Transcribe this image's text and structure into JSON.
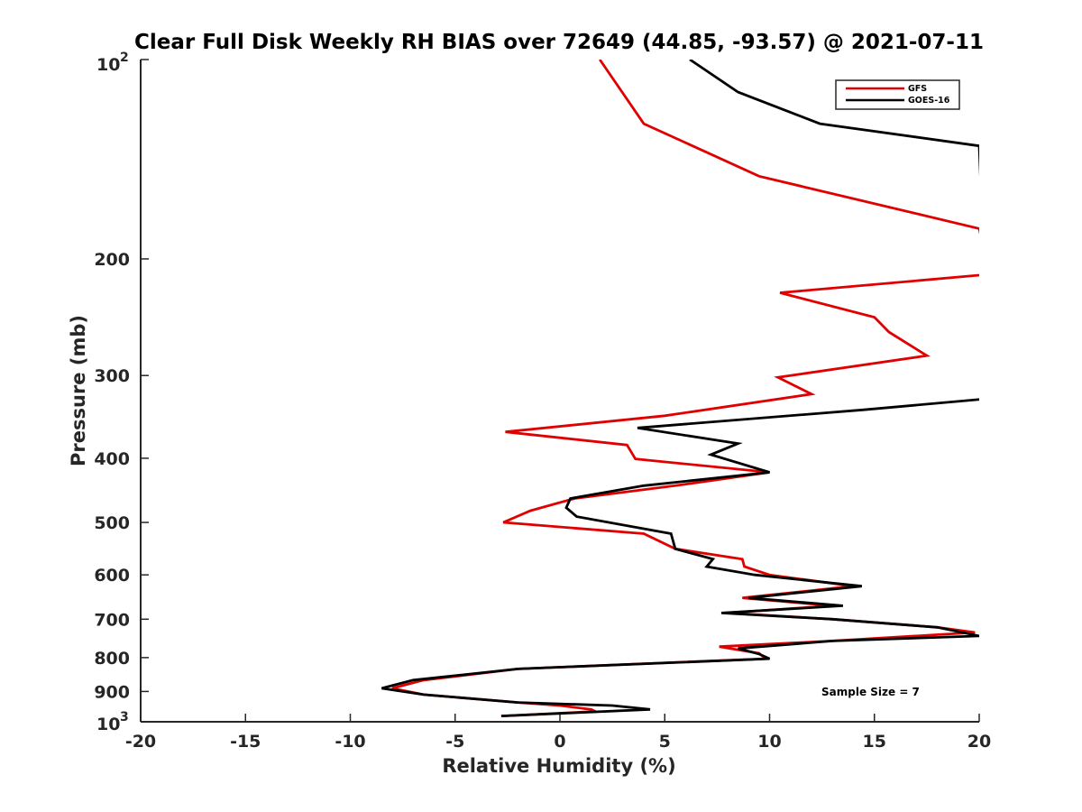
{
  "chart_data": {
    "type": "line",
    "title": "Clear Full Disk Weekly RH BIAS over 72649 (44.85, -93.57) @ 2021-07-11",
    "xlabel": "Relative Humidity (%)",
    "ylabel": "Pressure (mb)",
    "xlim": [
      -20,
      20
    ],
    "ylim": [
      100,
      1000
    ],
    "y_scale": "log",
    "y_reversed": true,
    "grid": false,
    "legend_position": "top-right",
    "x_ticks": [
      -20,
      -15,
      -10,
      -5,
      0,
      5,
      10,
      15,
      20
    ],
    "x_tick_labels": [
      "-20",
      "-15",
      "-10",
      "-5",
      "0",
      "5",
      "10",
      "15",
      "20"
    ],
    "y_ticks": [
      200,
      300,
      400,
      500,
      600,
      700,
      800,
      900
    ],
    "y_tick_labels": [
      "200",
      "300",
      "400",
      "500",
      "600",
      "700",
      "800",
      "900"
    ],
    "y_edge_labels": {
      "top_base": "10",
      "top_exp": "2",
      "bottom_base": "10",
      "bottom_exp": "3"
    },
    "annotation": "Sample Size = 7",
    "series": [
      {
        "name": "GFS",
        "color": "#e00000",
        "points": [
          [
            1.9,
            100
          ],
          [
            4.0,
            125
          ],
          [
            9.5,
            150
          ],
          [
            20.0,
            180
          ],
          [
            20.5,
            211
          ],
          [
            10.5,
            225
          ],
          [
            15.0,
            245
          ],
          [
            15.7,
            258
          ],
          [
            17.5,
            280
          ],
          [
            10.4,
            302
          ],
          [
            12.0,
            320
          ],
          [
            5.0,
            345
          ],
          [
            -2.6,
            365
          ],
          [
            3.2,
            382
          ],
          [
            3.6,
            401
          ],
          [
            10.0,
            420
          ],
          [
            5.5,
            440
          ],
          [
            0.7,
            460
          ],
          [
            -1.4,
            480
          ],
          [
            -2.7,
            500
          ],
          [
            4.0,
            520
          ],
          [
            5.5,
            548
          ],
          [
            8.7,
            568
          ],
          [
            8.8,
            583
          ],
          [
            10.0,
            600
          ],
          [
            14.0,
            624
          ],
          [
            8.7,
            650
          ],
          [
            13.0,
            668
          ],
          [
            8.0,
            685
          ],
          [
            13.0,
            700
          ],
          [
            18.0,
            720
          ],
          [
            19.8,
            733
          ],
          [
            13.0,
            755
          ],
          [
            7.6,
            770
          ],
          [
            9.5,
            788
          ],
          [
            9.8,
            803
          ],
          [
            -2.0,
            832
          ],
          [
            -6.5,
            865
          ],
          [
            -8.0,
            890
          ],
          [
            -6.5,
            910
          ],
          [
            -2.0,
            935
          ],
          [
            0.0,
            945
          ],
          [
            1.5,
            958
          ],
          [
            1.7,
            965
          ],
          [
            -2.8,
            980
          ]
        ]
      },
      {
        "name": "GOES-16",
        "color": "#000000",
        "points": [
          [
            6.2,
            100
          ],
          [
            8.5,
            112
          ],
          [
            12.4,
            125
          ],
          [
            20.0,
            135
          ],
          [
            20.5,
            325
          ],
          [
            14.5,
            338
          ],
          [
            3.7,
            360
          ],
          [
            8.5,
            380
          ],
          [
            7.2,
            395
          ],
          [
            10.0,
            420
          ],
          [
            4.0,
            440
          ],
          [
            0.5,
            460
          ],
          [
            0.3,
            475
          ],
          [
            0.8,
            490
          ],
          [
            5.3,
            520
          ],
          [
            5.5,
            548
          ],
          [
            7.3,
            568
          ],
          [
            7.0,
            583
          ],
          [
            9.3,
            600
          ],
          [
            14.4,
            624
          ],
          [
            9.0,
            650
          ],
          [
            13.5,
            668
          ],
          [
            7.7,
            685
          ],
          [
            13.0,
            700
          ],
          [
            18.0,
            720
          ],
          [
            20.0,
            742
          ],
          [
            13.0,
            755
          ],
          [
            8.5,
            775
          ],
          [
            9.5,
            790
          ],
          [
            10.0,
            803
          ],
          [
            -2.0,
            832
          ],
          [
            -7.0,
            865
          ],
          [
            -8.5,
            890
          ],
          [
            -6.5,
            910
          ],
          [
            -2.0,
            935
          ],
          [
            2.5,
            945
          ],
          [
            4.3,
            958
          ],
          [
            -2.8,
            980
          ]
        ]
      }
    ]
  }
}
